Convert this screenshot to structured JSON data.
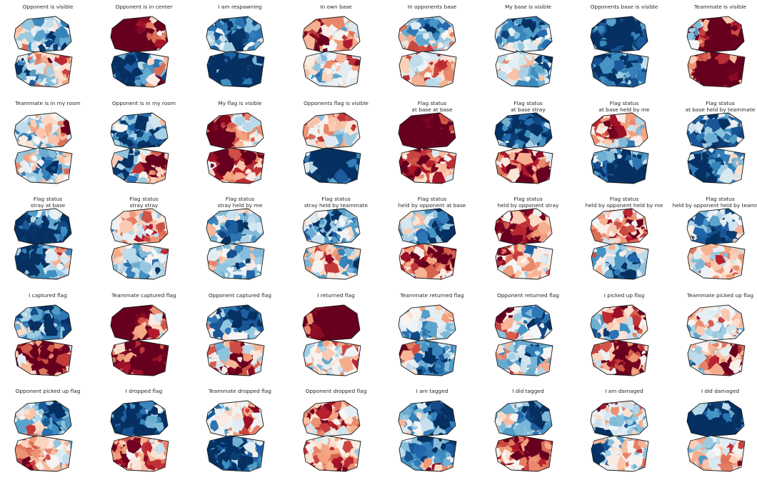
{
  "panels": [
    {
      "title": "Opponent is visible"
    },
    {
      "title": "Opponent is in center"
    },
    {
      "title": "I am respawning"
    },
    {
      "title": "In own base"
    },
    {
      "title": "In opponents base"
    },
    {
      "title": "My base is visible"
    },
    {
      "title": "Opponents base is visible"
    },
    {
      "title": "Teammate is visible"
    },
    {
      "title": "Teammate is in my room"
    },
    {
      "title": "Opponent is in my room"
    },
    {
      "title": "My flag is visible"
    },
    {
      "title": "Opponents flag is visible"
    },
    {
      "title": "Flag status\nat base at base"
    },
    {
      "title": "Flag status\nat base stray"
    },
    {
      "title": "Flag status\nat base held by me"
    },
    {
      "title": "Flag status\nat base held by teammate"
    },
    {
      "title": "Flag status\nstray at base"
    },
    {
      "title": "Flag status\nstray stray"
    },
    {
      "title": "Flag status\nstray held by me"
    },
    {
      "title": "Flag status\nstray held by teammate"
    },
    {
      "title": "Flag status\nheld by opponent at base"
    },
    {
      "title": "Flag status\nheld by opponent stray"
    },
    {
      "title": "Flag status\nheld by opponent held by me"
    },
    {
      "title": "Flag status\nheld by opponent held by teammate"
    },
    {
      "title": "I captured flag"
    },
    {
      "title": "Teammate captured flag"
    },
    {
      "title": "Opponent captured flag"
    },
    {
      "title": "I returned flag"
    },
    {
      "title": "Teammate returned flag"
    },
    {
      "title": "Opponent returned flag"
    },
    {
      "title": "I picked up flag"
    },
    {
      "title": "Teammate picked up flag"
    },
    {
      "title": "Opponent picked up flag"
    },
    {
      "title": "I dropped flag"
    },
    {
      "title": "Teammate dropped flag"
    },
    {
      "title": "Opponent dropped flag"
    },
    {
      "title": "I am tagged"
    },
    {
      "title": "I did tagged"
    },
    {
      "title": "I am damaged"
    },
    {
      "title": "I did damaged"
    }
  ],
  "colormap": [
    "#67001f",
    "#b2182b",
    "#d6604d",
    "#f4a582",
    "#fddbc7",
    "#f7f7f7",
    "#d1e5f0",
    "#92c5de",
    "#4393c3",
    "#2166ac",
    "#053061"
  ],
  "edge_color": "#1a1a1a"
}
